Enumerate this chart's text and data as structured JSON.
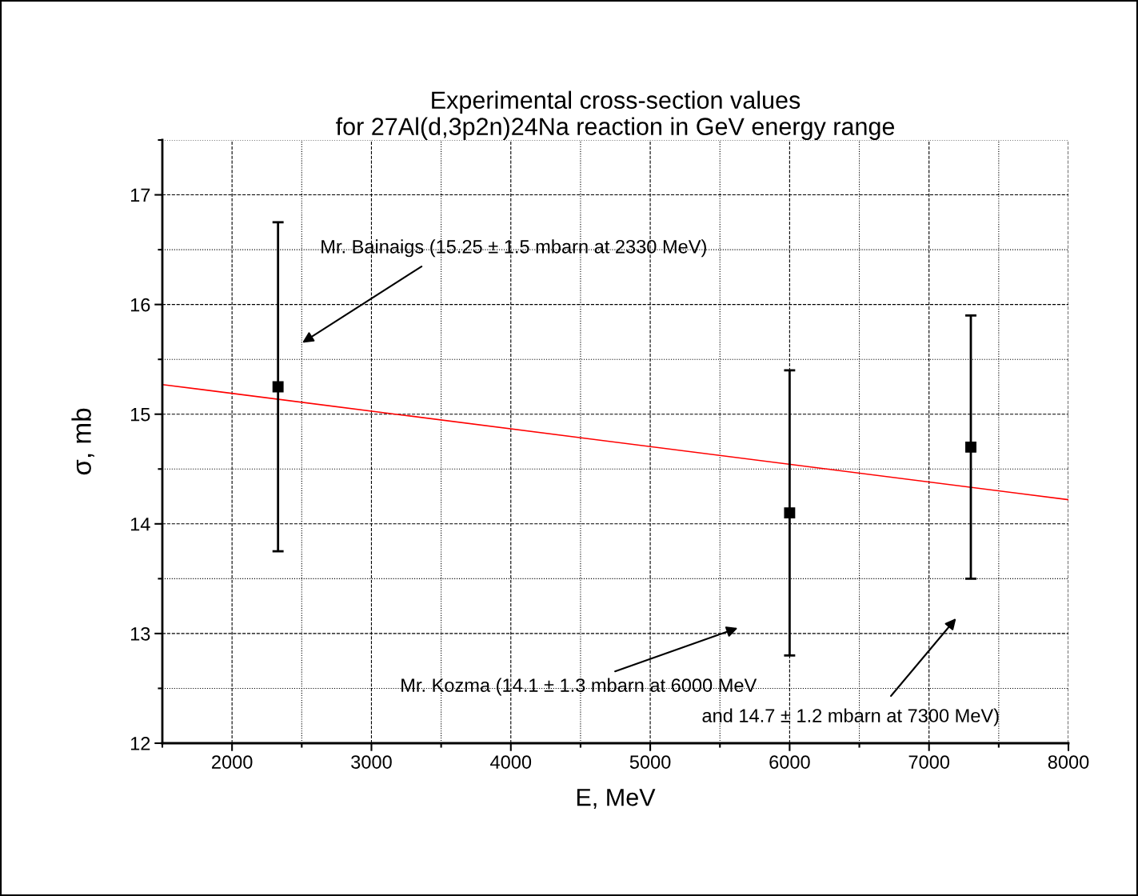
{
  "chart_data": {
    "type": "scatter",
    "title": "Experimental cross-section values\nfor 27Al(d,3p2n)24Na reaction in GeV energy range",
    "xlabel": "E, MeV",
    "ylabel": "σ, mb",
    "xlim": [
      1500,
      8000
    ],
    "xticks": [
      2000,
      3000,
      4000,
      5000,
      6000,
      7000,
      8000
    ],
    "ylim": [
      12,
      17.5
    ],
    "yticks": [
      12,
      13,
      14,
      15,
      16,
      17
    ],
    "grid": true,
    "marker": "square",
    "series": [
      {
        "color": "#000000",
        "x": [
          2330,
          6000,
          7300
        ],
        "values": [
          15.25,
          14.1,
          14.7
        ],
        "errors": [
          1.5,
          1.3,
          1.2
        ]
      },
      {
        "type": "line",
        "color": "#ff0000",
        "marker": "none",
        "x": [
          1500,
          8000
        ],
        "values": [
          15.27,
          14.22
        ]
      }
    ],
    "annotations": [
      "Mr. Bainaigs (15.25 ± 1.5 mbarn at 2330 MeV)",
      "Mr. Kozma (14.1 ± 1.3 mbarn at 6000 MeV",
      "and 14.7 ± 1.2 mbarn at 7300 MeV)"
    ]
  }
}
